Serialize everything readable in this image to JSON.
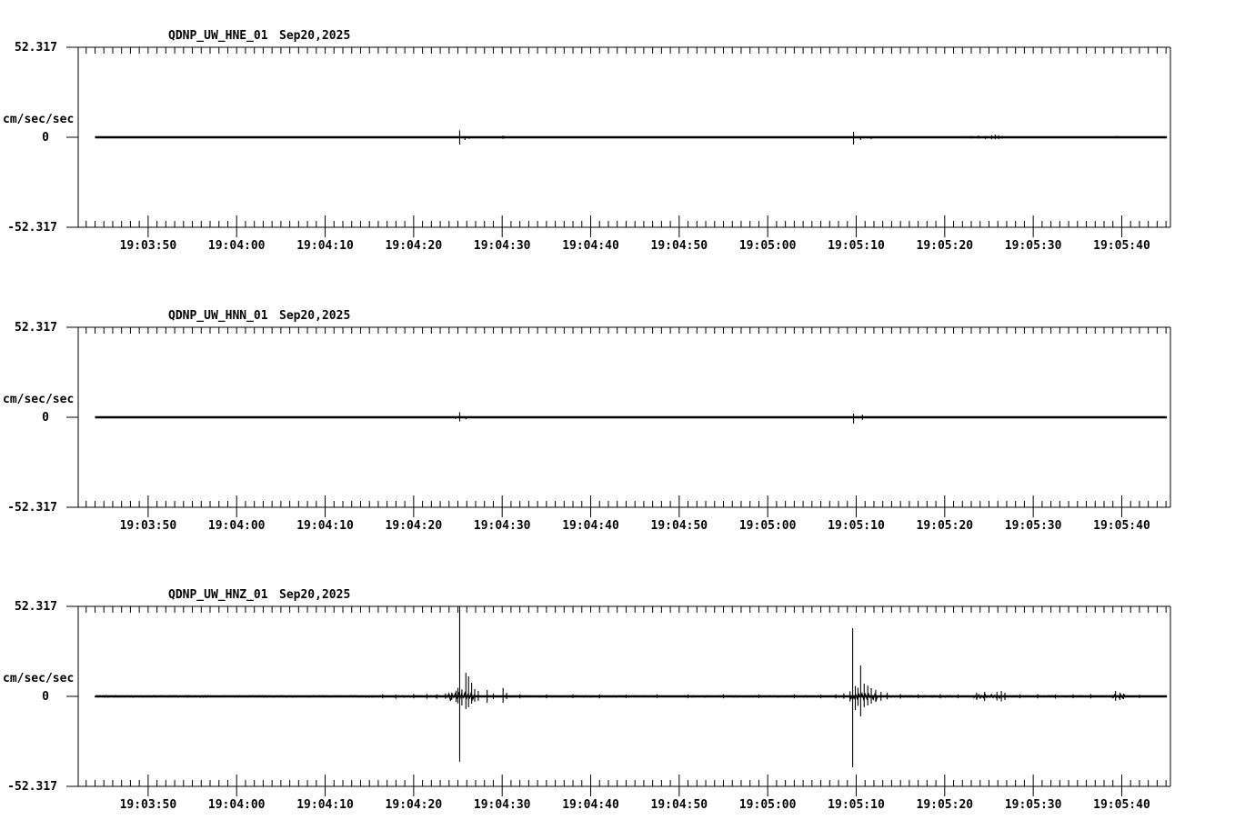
{
  "page": {
    "background": "#ffffff",
    "foreground": "#000000",
    "description": "Three-channel strong-motion seismogram display for station QDNP (network UW), channels HNE/HNN/HNZ"
  },
  "chart_data": {
    "type": "line",
    "subtype": "seismogram",
    "grid": false,
    "legend": false,
    "amplitude_units": "cm/sec/sec",
    "y_axis": {
      "max_label": "52.317",
      "zero_label": "0",
      "min_label": "-52.317",
      "units": "cm/sec/sec",
      "range": [
        -52.317,
        52.317
      ]
    },
    "x_axis": {
      "t_reference": "19:03:40",
      "t_unit": "seconds after 19:03:40",
      "axis_range_s": [
        2.1,
        125.5
      ],
      "trace_range_s": [
        4.0,
        125.1
      ],
      "top_tick_step_s": 1,
      "minor_tick_step_s": 1,
      "major_tick_seconds": [
        10,
        20,
        30,
        40,
        50,
        60,
        70,
        80,
        90,
        100,
        110,
        120
      ],
      "labels": [
        "19:03:50",
        "19:04:00",
        "19:04:10",
        "19:04:20",
        "19:04:30",
        "19:04:40",
        "19:04:50",
        "19:05:00",
        "19:05:10",
        "19:05:20",
        "19:05:30",
        "19:05:40"
      ]
    },
    "series": [
      {
        "id": "hne",
        "station": "QDNP_UW_HNE_01",
        "date": "Sep20,2025",
        "spikes": [
          [
            45.2,
            4.0,
            4.2
          ],
          [
            45.8,
            0.6,
            1.6
          ],
          [
            46.3,
            0.3,
            0.9
          ],
          [
            50.1,
            1.0,
            0.9
          ],
          [
            89.7,
            3.2,
            4.2
          ],
          [
            90.5,
            0.6,
            1.6
          ],
          [
            91.7,
            0.4,
            1.1
          ],
          [
            102.2,
            0.6,
            0.6
          ],
          [
            103.0,
            0.8,
            0.7
          ],
          [
            103.8,
            1.0,
            0.8
          ],
          [
            104.6,
            0.8,
            1.0
          ],
          [
            105.3,
            1.2,
            1.2
          ],
          [
            105.7,
            1.5,
            1.2
          ],
          [
            106.1,
            1.2,
            1.1
          ],
          [
            106.5,
            0.8,
            0.8
          ],
          [
            119.5,
            0.8,
            0.6
          ]
        ],
        "noise": []
      },
      {
        "id": "hnn",
        "station": "QDNP_UW_HNN_01",
        "date": "Sep20,2025",
        "spikes": [
          [
            44.7,
            0.3,
            1.0
          ],
          [
            45.2,
            3.0,
            2.4
          ],
          [
            45.9,
            0.3,
            1.2
          ],
          [
            89.7,
            2.1,
            3.6
          ],
          [
            90.7,
            1.5,
            1.5
          ]
        ],
        "noise": []
      },
      {
        "id": "hnz",
        "station": "QDNP_UW_HNZ_01",
        "date": "Sep20,2025",
        "spikes": [
          [
            36.5,
            1.2,
            1.2
          ],
          [
            38.0,
            1.0,
            1.4
          ],
          [
            40.0,
            1.4,
            1.2
          ],
          [
            41.5,
            1.4,
            1.4
          ],
          [
            42.6,
            1.2,
            1.4
          ],
          [
            43.6,
            1.7,
            1.4
          ],
          [
            44.3,
            2.2,
            2.0
          ],
          [
            44.8,
            3.3,
            3.3
          ],
          [
            45.0,
            5.0,
            4.0
          ],
          [
            45.2,
            52.3,
            38.0
          ],
          [
            45.45,
            4.0,
            5.3
          ],
          [
            45.9,
            13.7,
            7.4
          ],
          [
            46.2,
            11.6,
            6.3
          ],
          [
            46.55,
            7.9,
            4.2
          ],
          [
            46.9,
            4.2,
            3.2
          ],
          [
            47.3,
            3.2,
            2.6
          ],
          [
            48.3,
            3.7,
            3.7
          ],
          [
            49.0,
            1.6,
            1.6
          ],
          [
            50.1,
            4.8,
            3.7
          ],
          [
            50.5,
            2.1,
            1.6
          ],
          [
            52.0,
            1.2,
            1.2
          ],
          [
            55.0,
            1.1,
            1.1
          ],
          [
            58.0,
            1.2,
            1.0
          ],
          [
            61.0,
            1.1,
            1.2
          ],
          [
            64.0,
            1.0,
            1.0
          ],
          [
            67.5,
            1.2,
            1.1
          ],
          [
            71.0,
            1.1,
            1.1
          ],
          [
            75.0,
            1.2,
            1.2
          ],
          [
            79.0,
            1.1,
            1.0
          ],
          [
            83.0,
            1.2,
            1.1
          ],
          [
            86.0,
            1.1,
            1.1
          ],
          [
            87.7,
            1.2,
            1.2
          ],
          [
            88.6,
            1.7,
            1.4
          ],
          [
            89.3,
            3.0,
            3.0
          ],
          [
            89.6,
            39.6,
            41.2
          ],
          [
            89.9,
            6.0,
            8.0
          ],
          [
            90.2,
            5.0,
            5.5
          ],
          [
            90.5,
            17.9,
            11.6
          ],
          [
            90.9,
            7.4,
            6.3
          ],
          [
            91.3,
            6.3,
            5.3
          ],
          [
            91.7,
            4.8,
            4.2
          ],
          [
            92.2,
            3.7,
            3.2
          ],
          [
            92.8,
            2.6,
            2.6
          ],
          [
            93.5,
            2.1,
            1.7
          ],
          [
            95.0,
            1.3,
            1.3
          ],
          [
            97.0,
            1.2,
            1.1
          ],
          [
            99.5,
            1.3,
            1.2
          ],
          [
            101.5,
            1.1,
            1.1
          ],
          [
            103.6,
            2.1,
            2.1
          ],
          [
            104.5,
            2.6,
            2.6
          ],
          [
            105.9,
            2.6,
            2.4
          ],
          [
            106.4,
            3.2,
            2.9
          ],
          [
            106.8,
            2.1,
            2.1
          ],
          [
            108.5,
            1.2,
            1.1
          ],
          [
            110.5,
            1.3,
            1.2
          ],
          [
            112.5,
            1.1,
            1.3
          ],
          [
            114.5,
            1.2,
            1.1
          ],
          [
            116.5,
            1.3,
            1.2
          ],
          [
            119.3,
            3.2,
            2.6
          ],
          [
            119.8,
            2.2,
            2.1
          ],
          [
            120.2,
            1.6,
            1.6
          ],
          [
            122.0,
            0.9,
            0.9
          ]
        ],
        "noise": [
          [
            4.0,
            43.8,
            0.55
          ],
          [
            43.8,
            46.9,
            2.6
          ],
          [
            47.0,
            89.2,
            0.5
          ],
          [
            89.4,
            92.4,
            2.2
          ],
          [
            92.5,
            119.0,
            0.55
          ],
          [
            103.3,
            107.0,
            1.2
          ],
          [
            119.0,
            120.4,
            1.2
          ],
          [
            120.4,
            125.0,
            0.35
          ]
        ]
      }
    ]
  }
}
